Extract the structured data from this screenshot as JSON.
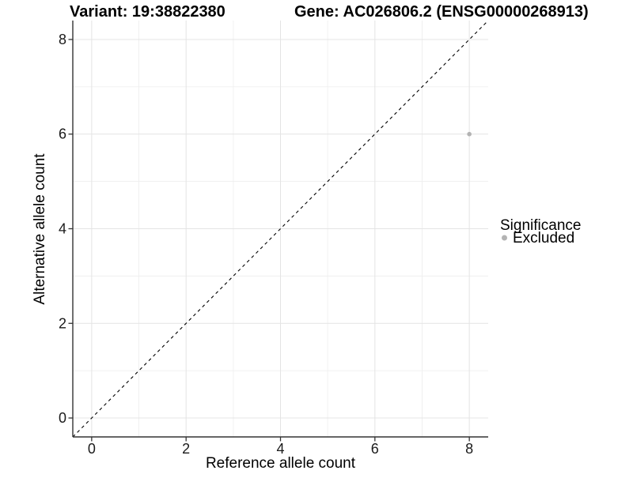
{
  "chart_data": {
    "type": "scatter",
    "titles": {
      "left": "Variant: 19:38822380",
      "right": "Gene: AC026806.2 (ENSG00000268913)"
    },
    "xlabel": "Reference allele count",
    "ylabel": "Alternative allele count",
    "xlim": [
      -0.4,
      8.4
    ],
    "ylim": [
      -0.4,
      8.4
    ],
    "x_ticks": [
      0,
      2,
      4,
      6,
      8
    ],
    "y_ticks": [
      0,
      2,
      4,
      6,
      8
    ],
    "x_minor_ticks": [
      1,
      3,
      5,
      7
    ],
    "y_minor_ticks": [
      1,
      3,
      5,
      7
    ],
    "grid": "major+minor",
    "identity_line": {
      "equation": "y = x",
      "style": "dashed",
      "color": "#000000"
    },
    "series": [
      {
        "name": "Excluded",
        "color": "#b3b3b3",
        "points": [
          {
            "x": 8,
            "y": 6
          }
        ]
      }
    ],
    "legend": {
      "title": "Significance",
      "position": "right",
      "entries": [
        {
          "label": "Excluded",
          "color": "#b3b3b3",
          "marker": "circle"
        }
      ]
    }
  },
  "style": {
    "background": "#ffffff",
    "grid_major": "#e4e4e4",
    "grid_minor": "#efefef",
    "axis_line": "#333333",
    "point_color": "#b3b3b3",
    "identity_line_color": "#000000"
  }
}
